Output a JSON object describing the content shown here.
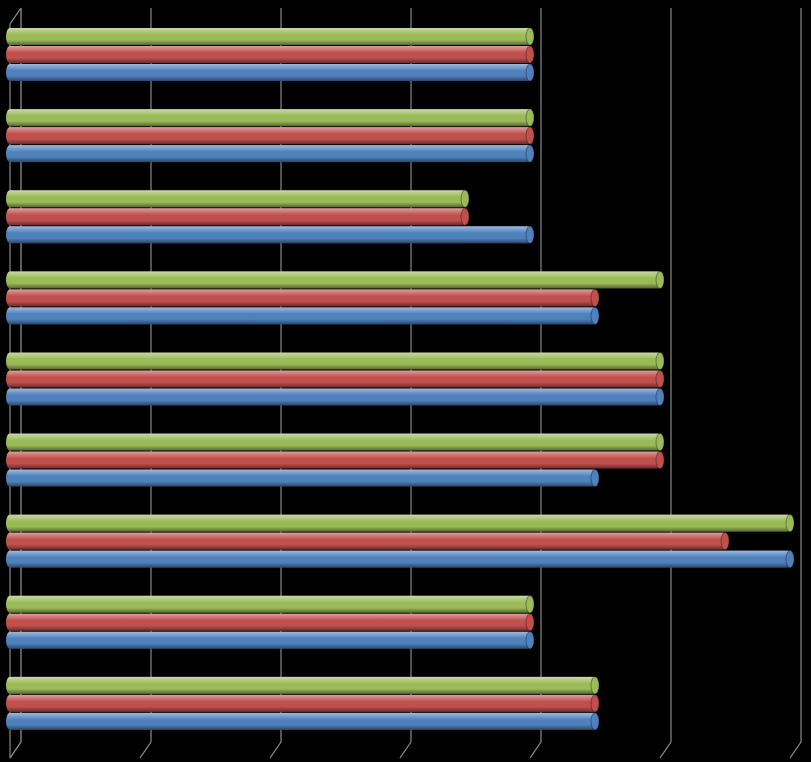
{
  "chart_data": {
    "type": "bar",
    "orientation": "horizontal",
    "categories": [
      null,
      null,
      null,
      null,
      null,
      null,
      null,
      null,
      null
    ],
    "series": [
      {
        "color": "#9bbb59",
        "values": [
          4,
          4,
          3.5,
          5,
          5,
          5,
          6,
          4,
          4.5
        ]
      },
      {
        "color": "#c0504d",
        "values": [
          4,
          4,
          3.5,
          4.5,
          5,
          5,
          5.5,
          4,
          4.5
        ]
      },
      {
        "color": "#4f81bd",
        "values": [
          4,
          4,
          4,
          4.5,
          5,
          4.5,
          6,
          4,
          4.5
        ]
      }
    ],
    "xlim": [
      0,
      6
    ],
    "xticks": [
      0,
      1,
      2,
      3,
      4,
      5,
      6
    ],
    "grid": true
  }
}
